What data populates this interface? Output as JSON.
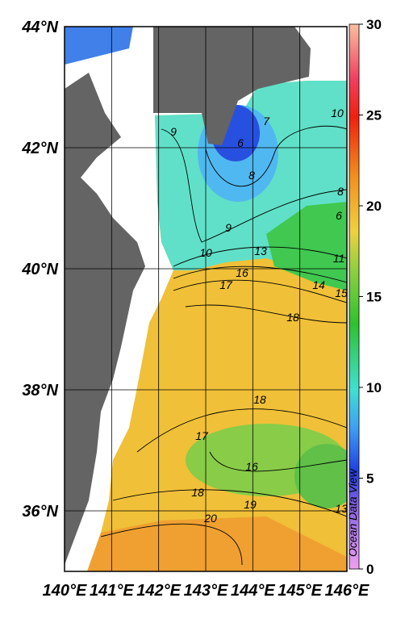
{
  "map": {
    "xlim": [
      140,
      146
    ],
    "ylim": [
      35,
      44
    ],
    "lon_ticks": [
      {
        "value": 140,
        "label": "140°E"
      },
      {
        "value": 141,
        "label": "141°E"
      },
      {
        "value": 142,
        "label": "142°E"
      },
      {
        "value": 143,
        "label": "143°E"
      },
      {
        "value": 144,
        "label": "144°E"
      },
      {
        "value": 145,
        "label": "145°E"
      },
      {
        "value": 146,
        "label": "146°E"
      }
    ],
    "lat_ticks": [
      {
        "value": 44,
        "label": "44°N"
      },
      {
        "value": 42,
        "label": "42°N"
      },
      {
        "value": 40,
        "label": "40°N"
      },
      {
        "value": 38,
        "label": "38°N"
      },
      {
        "value": 36,
        "label": "36°N"
      }
    ],
    "grid": true,
    "colorbar": {
      "lim": [
        0,
        30
      ],
      "ticks": [
        0,
        5,
        10,
        15,
        20,
        25,
        30
      ]
    },
    "contour_labels": [
      9,
      7,
      6,
      8,
      10,
      8,
      6,
      9,
      10,
      13,
      11,
      16,
      17,
      14,
      15,
      18,
      18,
      17,
      16,
      18,
      19,
      20,
      13
    ],
    "watermark": "Ocean Data View"
  }
}
